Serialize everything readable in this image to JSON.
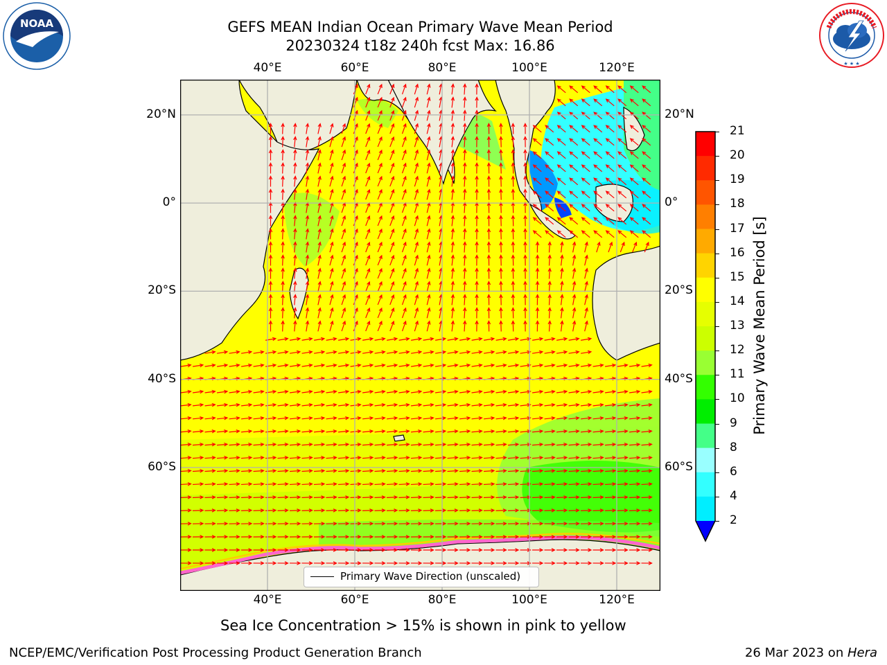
{
  "header": {
    "title_line1": "GEFS MEAN Indian Ocean Primary Wave Mean Period",
    "title_line2": "20230324 t18z 240h fcst   Max: 16.86"
  },
  "logos": {
    "left": {
      "name": "noaa-logo",
      "text": "NOAA",
      "colors": {
        "circle": "#1b5fa8",
        "bird": "#ffffff",
        "sky": "#173a7a"
      }
    },
    "right": {
      "name": "nws-logo",
      "text": "NATIONAL WEATHER SERVICE",
      "colors": {
        "ring": "#e81b24",
        "cloud": "#1c5aa8"
      }
    }
  },
  "map": {
    "lon_range": [
      20,
      130
    ],
    "lat_range": [
      -88,
      28
    ],
    "lon_ticks": [
      "40°E",
      "60°E",
      "80°E",
      "100°E",
      "120°E"
    ],
    "lon_tick_values": [
      40,
      60,
      80,
      100,
      120
    ],
    "lat_ticks_left": [
      "20°N",
      "0°",
      "20°S",
      "40°S",
      "60°S"
    ],
    "lat_ticks_right": [
      "20°N",
      "0°",
      "20°S",
      "40°S",
      "60°S"
    ],
    "lat_tick_values": [
      20,
      0,
      -20,
      -40,
      -60
    ],
    "colors": {
      "land": "#efeedc",
      "ocean_base": "#ffff00",
      "coast": "#000000",
      "grid": "#b0b0b0",
      "arrow": "#ff0000"
    },
    "legend_label": "Primary Wave Direction (unscaled)",
    "note": "Sea Ice Concentration > 15% is shown in pink to yellow"
  },
  "colorbar": {
    "label": "Primary Wave Mean Period [s]",
    "ticks": [
      "21",
      "20",
      "19",
      "18",
      "17",
      "16",
      "15",
      "14",
      "13",
      "12",
      "11",
      "10",
      "9",
      "8",
      "6",
      "4",
      "2"
    ],
    "colors": [
      "#ff0000",
      "#ff2a00",
      "#ff5500",
      "#ff7f00",
      "#ffaa00",
      "#ffd400",
      "#ffff00",
      "#e6ff00",
      "#ccff00",
      "#99ff33",
      "#33ff00",
      "#00ee00",
      "#44ff88",
      "#99ffff",
      "#33ffff",
      "#00eeff",
      "#0099ff",
      "#0044ff"
    ],
    "extend_color": "#0000ff"
  },
  "footer": {
    "left": "NCEP/EMC/Verification Post Processing Product Generation Branch",
    "date": "26 Mar 2023 on ",
    "machine": "Hera"
  }
}
